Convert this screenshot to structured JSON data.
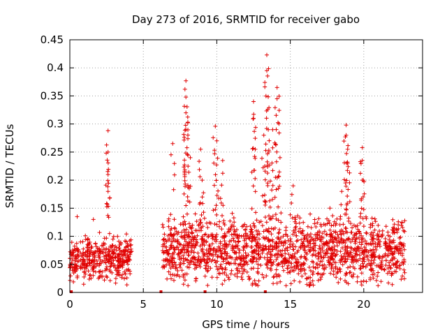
{
  "chart_data": {
    "type": "scatter",
    "title": "Day 273 of 2016, SRMTID for receiver gabo",
    "xlabel": "GPS time / hours",
    "ylabel": "SRMTID / TECUs",
    "xlim": [
      0,
      24
    ],
    "ylim": [
      0,
      0.45
    ],
    "xticks": [
      0,
      5,
      10,
      15,
      20
    ],
    "xtick_labels": [
      "0",
      "5",
      "10",
      "15",
      "20"
    ],
    "yticks": [
      0,
      0.05,
      0.1,
      0.15,
      0.2,
      0.25,
      0.3,
      0.35,
      0.4,
      0.45
    ],
    "ytick_labels": [
      "0",
      "0.05",
      "0.1",
      "0.15",
      "0.2",
      "0.25",
      "0.3",
      "0.35",
      "0.4",
      "0.45"
    ],
    "grid": true,
    "marker": "+",
    "color": "#e00000",
    "segments": [
      {
        "start": 0.0,
        "end": 4.2,
        "base": 0.06,
        "spread": 0.035
      },
      {
        "start": 6.3,
        "end": 22.8,
        "base": 0.075,
        "spread": 0.05
      }
    ],
    "peaks": [
      {
        "x": 0.5,
        "y": 0.135
      },
      {
        "x": 1.6,
        "y": 0.13
      },
      {
        "x": 2.6,
        "y": 0.288
      },
      {
        "x": 2.6,
        "y": 0.25
      },
      {
        "x": 2.6,
        "y": 0.21
      },
      {
        "x": 2.6,
        "y": 0.18
      },
      {
        "x": 7.0,
        "y": 0.265
      },
      {
        "x": 7.9,
        "y": 0.377
      },
      {
        "x": 7.9,
        "y": 0.348
      },
      {
        "x": 7.9,
        "y": 0.32
      },
      {
        "x": 7.9,
        "y": 0.29
      },
      {
        "x": 8.2,
        "y": 0.24
      },
      {
        "x": 8.9,
        "y": 0.255
      },
      {
        "x": 9.0,
        "y": 0.2
      },
      {
        "x": 9.9,
        "y": 0.296
      },
      {
        "x": 10.0,
        "y": 0.27
      },
      {
        "x": 10.4,
        "y": 0.235
      },
      {
        "x": 12.5,
        "y": 0.34
      },
      {
        "x": 12.5,
        "y": 0.31
      },
      {
        "x": 13.2,
        "y": 0.28
      },
      {
        "x": 13.4,
        "y": 0.423
      },
      {
        "x": 13.4,
        "y": 0.395
      },
      {
        "x": 13.5,
        "y": 0.29
      },
      {
        "x": 13.8,
        "y": 0.29
      },
      {
        "x": 14.1,
        "y": 0.365
      },
      {
        "x": 14.1,
        "y": 0.345
      },
      {
        "x": 14.3,
        "y": 0.24
      },
      {
        "x": 15.2,
        "y": 0.19
      },
      {
        "x": 17.7,
        "y": 0.15
      },
      {
        "x": 18.5,
        "y": 0.18
      },
      {
        "x": 18.8,
        "y": 0.298
      },
      {
        "x": 18.8,
        "y": 0.28
      },
      {
        "x": 18.9,
        "y": 0.255
      },
      {
        "x": 18.9,
        "y": 0.23
      },
      {
        "x": 19.9,
        "y": 0.258
      },
      {
        "x": 19.9,
        "y": 0.235
      },
      {
        "x": 19.9,
        "y": 0.2
      },
      {
        "x": 22.6,
        "y": 0.125
      }
    ],
    "zero_markers": [
      0.1,
      6.2,
      9.2,
      13.3
    ]
  }
}
